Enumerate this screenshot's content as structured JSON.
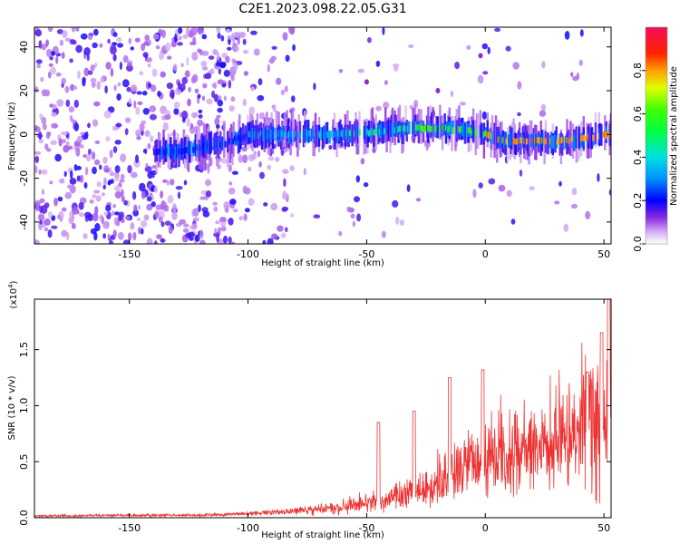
{
  "title": "C2E1.2023.098.22.05.G31",
  "chart_data": [
    {
      "type": "heatmap",
      "xlabel": "Height of straight line (km)",
      "ylabel": "Frequency (Hz)",
      "xlim": [
        -190,
        53
      ],
      "ylim": [
        -50,
        49
      ],
      "xticks": [
        -150,
        -100,
        -50,
        0,
        50
      ],
      "yticks": [
        -40,
        -20,
        0,
        20,
        40
      ],
      "colorbar": {
        "label": "Normalized spectral amplitude",
        "range": [
          0.0,
          1.0
        ],
        "ticks": [
          0.0,
          0.2,
          0.4,
          0.6,
          0.8
        ],
        "tick_labels": [
          "0.0",
          "0.2",
          "0.4",
          "0.6",
          "0.8"
        ]
      },
      "ridge": {
        "description_points_x": [
          -130,
          -110,
          -100,
          -80,
          -60,
          -50,
          -40,
          -30,
          -20,
          -10,
          0,
          5,
          10,
          20,
          30,
          40,
          45,
          50,
          53
        ],
        "center_frequency_hz": [
          -8,
          -4,
          0,
          0,
          0,
          1,
          2,
          3,
          3,
          2,
          0,
          -2,
          -3,
          -3,
          -3,
          -2,
          -1,
          0,
          0
        ]
      },
      "outlier_points": [
        {
          "x": -2,
          "y": 36
        },
        {
          "x": -20,
          "y": 20
        },
        {
          "x": -50,
          "y": 24
        }
      ],
      "grid": false
    },
    {
      "type": "line",
      "xlabel": "Height of straight line (km)",
      "ylabel": "SNR (10 * v/v)",
      "y_multiplier_label": "(x10",
      "y_multiplier_exp": "4",
      "y_multiplier_close": ")",
      "xlim": [
        -190,
        53
      ],
      "ylim": [
        0.0,
        1.95
      ],
      "xticks": [
        -150,
        -100,
        -50,
        0,
        50
      ],
      "yticks": [
        0.0,
        0.5,
        1.0,
        1.5
      ],
      "ytick_labels": [
        "0.0",
        "0.5",
        "1.0",
        "1.5"
      ],
      "color": "#ee3333",
      "series": [
        {
          "envelope_x": [
            -190,
            -150,
            -120,
            -100,
            -80,
            -60,
            -50,
            -40,
            -30,
            -20,
            -10,
            0,
            10,
            20,
            30,
            40,
            45,
            50,
            53
          ],
          "envelope_y": [
            0.02,
            0.03,
            0.03,
            0.05,
            0.08,
            0.12,
            0.17,
            0.22,
            0.3,
            0.42,
            0.56,
            0.65,
            0.78,
            0.86,
            0.92,
            0.96,
            0.96,
            0.98,
            1.05
          ],
          "spikes": [
            {
              "x": -45,
              "y": 0.85
            },
            {
              "x": -30,
              "y": 0.95
            },
            {
              "x": -15,
              "y": 1.25
            },
            {
              "x": -1,
              "y": 1.32
            },
            {
              "x": 43,
              "y": 1.3
            },
            {
              "x": 49,
              "y": 1.65
            },
            {
              "x": 52,
              "y": 1.95
            }
          ]
        }
      ],
      "grid": false
    }
  ]
}
